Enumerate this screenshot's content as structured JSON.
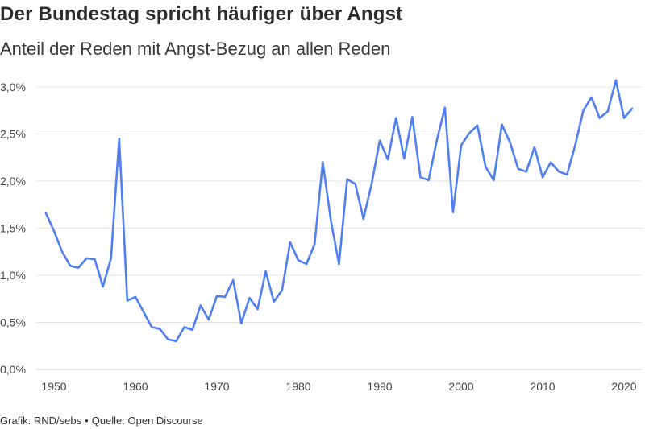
{
  "chart_data": {
    "type": "line",
    "title": "Der Bundestag spricht häufiger über Angst",
    "subtitle": "Anteil der Reden mit Angst-Bezug an allen Reden",
    "source": {
      "credit": "Grafik: RND/sebs",
      "separator": "•",
      "origin": "Quelle: Open Discourse"
    },
    "xlabel": "",
    "ylabel": "",
    "xlim": [
      1949,
      2021
    ],
    "ylim": [
      0,
      3.0
    ],
    "x_ticks": [
      {
        "value": 1950,
        "label": "1950"
      },
      {
        "value": 1960,
        "label": "1960"
      },
      {
        "value": 1970,
        "label": "1970"
      },
      {
        "value": 1980,
        "label": "1980"
      },
      {
        "value": 1990,
        "label": "1990"
      },
      {
        "value": 2000,
        "label": "2000"
      },
      {
        "value": 2010,
        "label": "2010"
      },
      {
        "value": 2020,
        "label": "2020"
      }
    ],
    "y_ticks": [
      {
        "value": 0.0,
        "label": "0,0%"
      },
      {
        "value": 0.5,
        "label": "0,5%"
      },
      {
        "value": 1.0,
        "label": "1,0%"
      },
      {
        "value": 1.5,
        "label": "1,5%"
      },
      {
        "value": 2.0,
        "label": "2,0%"
      },
      {
        "value": 2.5,
        "label": "2,5%"
      },
      {
        "value": 3.0,
        "label": "3,0%"
      }
    ],
    "grid": true,
    "color": "#4f7ff0",
    "series": [
      {
        "x": [
          1949,
          1950,
          1951,
          1952,
          1953,
          1954,
          1955,
          1956,
          1957,
          1958,
          1959,
          1960,
          1961,
          1962,
          1963,
          1964,
          1965,
          1966,
          1967,
          1968,
          1969,
          1970,
          1971,
          1972,
          1973,
          1974,
          1975,
          1976,
          1977,
          1978,
          1979,
          1980,
          1981,
          1982,
          1983,
          1984,
          1985,
          1986,
          1987,
          1988,
          1989,
          1990,
          1991,
          1992,
          1993,
          1994,
          1995,
          1996,
          1997,
          1998,
          1999,
          2000,
          2001,
          2002,
          2003,
          2004,
          2005,
          2006,
          2007,
          2008,
          2009,
          2010,
          2011,
          2012,
          2013,
          2014,
          2015,
          2016,
          2017,
          2018,
          2019,
          2020,
          2021
        ],
        "values": [
          1.66,
          1.47,
          1.25,
          1.1,
          1.08,
          1.18,
          1.17,
          0.88,
          1.18,
          2.45,
          0.73,
          0.77,
          0.61,
          0.45,
          0.43,
          0.32,
          0.3,
          0.45,
          0.42,
          0.68,
          0.53,
          0.78,
          0.77,
          0.95,
          0.49,
          0.76,
          0.64,
          1.04,
          0.72,
          0.84,
          1.35,
          1.16,
          1.12,
          1.33,
          2.2,
          1.58,
          1.12,
          2.02,
          1.97,
          1.6,
          1.97,
          2.43,
          2.23,
          2.67,
          2.24,
          2.68,
          2.04,
          2.01,
          2.43,
          2.78,
          1.67,
          2.38,
          2.51,
          2.59,
          2.15,
          2.01,
          2.6,
          2.41,
          2.13,
          2.1,
          2.36,
          2.04,
          2.2,
          2.1,
          2.07,
          2.38,
          2.75,
          2.89,
          2.67,
          2.74,
          3.07,
          2.67,
          2.77
        ]
      }
    ]
  }
}
